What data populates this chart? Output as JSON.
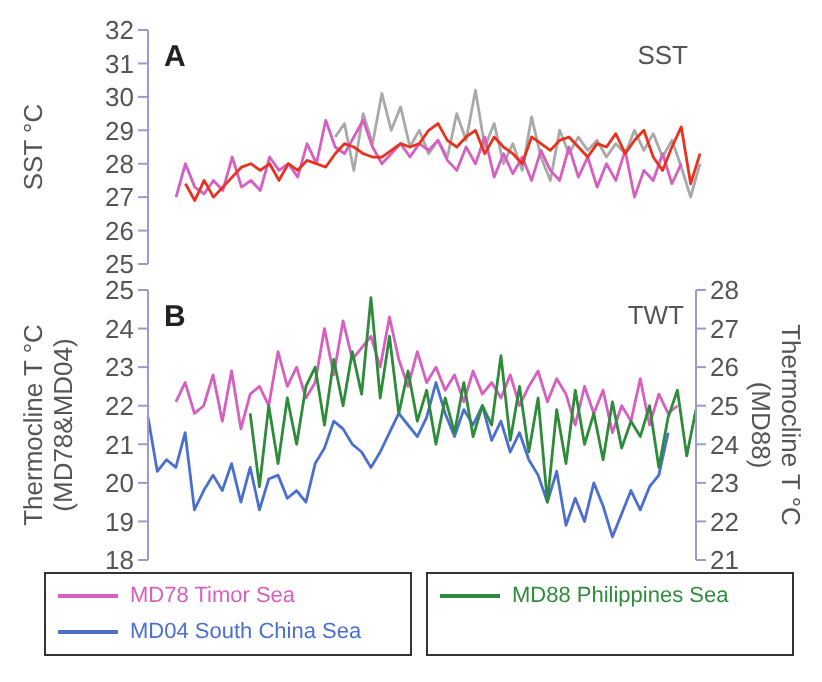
{
  "chart_data": [
    {
      "type": "line",
      "ylabel": "SST °C",
      "annotations": [
        "A",
        "SST"
      ],
      "categories": [
        null,
        null,
        null,
        null,
        null,
        null,
        null,
        null,
        null,
        null,
        null,
        null,
        null,
        null,
        null,
        null,
        null,
        null,
        null,
        null,
        null,
        null,
        null,
        null,
        null,
        null,
        null,
        null,
        null,
        null,
        null,
        null,
        null,
        null,
        null,
        null,
        null,
        null,
        null,
        null,
        null,
        null,
        null,
        null,
        null,
        null,
        null,
        null,
        null,
        null,
        null,
        null,
        null,
        null,
        null,
        null,
        null,
        null,
        null,
        null
      ],
      "ylim": [
        25,
        32
      ],
      "yticks": [
        25,
        26,
        27,
        28,
        29,
        30,
        31,
        32
      ],
      "series": [
        {
          "color": "#a9a9a9",
          "values": [
            null,
            null,
            null,
            null,
            null,
            null,
            null,
            null,
            null,
            null,
            null,
            null,
            null,
            null,
            null,
            null,
            null,
            null,
            null,
            null,
            28.8,
            29.2,
            27.8,
            29.5,
            28.6,
            30.1,
            29,
            29.7,
            28.5,
            29,
            28.3,
            28.7,
            28.2,
            29.5,
            28.7,
            30.2,
            28.5,
            29.2,
            28,
            28.6,
            27.8,
            29.4,
            28.2,
            27.5,
            29,
            28.3,
            28.8,
            28.4,
            28.7,
            28.2,
            28.6,
            28.3,
            29,
            28.4,
            28.9,
            28.2,
            28.7,
            27.9,
            27,
            28
          ]
        },
        {
          "color": "#d65fbf",
          "values": [
            null,
            null,
            null,
            27,
            28,
            27.3,
            27.1,
            27.5,
            27.2,
            28.2,
            27.3,
            27.5,
            27.2,
            28.2,
            27.8,
            28,
            27.6,
            28.6,
            28,
            29.3,
            28.5,
            28.3,
            28.8,
            29.3,
            28.5,
            28,
            28.3,
            28.6,
            28.2,
            28.6,
            28.4,
            28.7,
            28.1,
            27.8,
            28.5,
            28,
            28.8,
            27.6,
            28.3,
            27.7,
            28.2,
            27.5,
            28.4,
            27.8,
            27.5,
            28.5,
            27.6,
            28.2,
            27.3,
            28,
            27.5,
            28.4,
            27,
            27.8,
            27.5,
            28.3,
            27.4,
            28,
            null,
            null
          ]
        },
        {
          "color": "#e8321e",
          "values": [
            null,
            null,
            null,
            null,
            27.4,
            26.9,
            27.5,
            27,
            27.3,
            27.6,
            27.9,
            28,
            27.8,
            28,
            27.5,
            28,
            27.8,
            28.1,
            28,
            27.9,
            28.3,
            28.6,
            28.5,
            28.3,
            28.2,
            28.2,
            28.4,
            28.6,
            28.5,
            28.6,
            29,
            29.2,
            28.7,
            28.5,
            28.8,
            29,
            28.3,
            28.8,
            28.5,
            28.3,
            28,
            28.8,
            28.6,
            28.4,
            28.7,
            28.8,
            28.5,
            28.2,
            28.6,
            28.5,
            28.9,
            28.3,
            28.7,
            29,
            28.2,
            27.8,
            28.5,
            29.1,
            27.4,
            28.3
          ]
        }
      ]
    },
    {
      "type": "line",
      "ylabel": "Thermocline T °C\n(MD78&MD04)",
      "y2label": "Thermocline T °C\n(MD88)",
      "annotations": [
        "B",
        "TWT"
      ],
      "legend": "bottom",
      "categories": [
        null,
        null,
        null,
        null,
        null,
        null,
        null,
        null,
        null,
        null,
        null,
        null,
        null,
        null,
        null,
        null,
        null,
        null,
        null,
        null,
        null,
        null,
        null,
        null,
        null,
        null,
        null,
        null,
        null,
        null,
        null,
        null,
        null,
        null,
        null,
        null,
        null,
        null,
        null,
        null,
        null,
        null,
        null,
        null,
        null,
        null,
        null,
        null,
        null,
        null,
        null,
        null,
        null,
        null,
        null,
        null,
        null,
        null,
        null,
        null
      ],
      "ylim": [
        18,
        25
      ],
      "yticks": [
        18,
        19,
        20,
        21,
        22,
        23,
        24,
        25
      ],
      "y2lim": [
        21,
        28
      ],
      "y2ticks": [
        21,
        22,
        23,
        24,
        25,
        26,
        27,
        28
      ],
      "series": [
        {
          "name": "MD78 Timor Sea",
          "color": "#d65fbf",
          "values": [
            null,
            null,
            null,
            22.1,
            22.6,
            21.8,
            22,
            22.8,
            21.6,
            22.9,
            21.4,
            22.3,
            22.5,
            22,
            23.4,
            22.5,
            23,
            22.2,
            22.6,
            24,
            22.8,
            24.2,
            23.2,
            23.5,
            23.8,
            23,
            24.3,
            23.2,
            22.5,
            23.4,
            22.6,
            23,
            22.4,
            22.8,
            22.1,
            22.9,
            22.3,
            22.6,
            22.2,
            22.8,
            22,
            22.5,
            22.9,
            22.1,
            22.7,
            22.3,
            21.5,
            22.5,
            21.8,
            22.4,
            21.3,
            22,
            21.6,
            22.7,
            21.5,
            22.3,
            21.8,
            22,
            null,
            null
          ]
        },
        {
          "name": "MD04 South China Sea",
          "color": "#4a6fcf",
          "values": [
            21.7,
            20.3,
            20.6,
            20.4,
            21.3,
            19.3,
            19.8,
            20.2,
            19.8,
            20.5,
            19.5,
            20.4,
            19.3,
            20.1,
            20.2,
            19.6,
            19.8,
            19.5,
            20.5,
            20.9,
            21.6,
            21.4,
            21,
            20.8,
            20.4,
            20.8,
            21.3,
            21.8,
            21.5,
            21.2,
            21.7,
            22.6,
            21.8,
            21.2,
            21.9,
            21.5,
            22,
            21.1,
            21.6,
            20.8,
            21.3,
            20.6,
            20.2,
            19.5,
            20.3,
            18.9,
            19.6,
            19,
            20,
            19.4,
            18.6,
            19.2,
            19.8,
            19.3,
            19.9,
            20.2,
            21.3,
            null,
            null,
            null
          ]
        },
        {
          "name": "MD88 Philippines Sea",
          "color": "#2e8b3a",
          "axis": "y2",
          "values": [
            null,
            null,
            null,
            null,
            null,
            null,
            null,
            null,
            null,
            null,
            null,
            24.8,
            22.9,
            25,
            23.5,
            25.2,
            24,
            25.5,
            26,
            24.5,
            26.2,
            25,
            26.4,
            25.3,
            27.8,
            25.2,
            26.8,
            24.8,
            25.9,
            24.6,
            25.4,
            24,
            25.2,
            24.3,
            25.6,
            24.2,
            25,
            24.5,
            26.3,
            24.1,
            25.5,
            23.8,
            25.2,
            22.5,
            24.9,
            23.5,
            25.4,
            24,
            24.8,
            23.6,
            25.1,
            23.9,
            24.6,
            24.2,
            25,
            23.4,
            24.7,
            25.4,
            23.7,
            24.9
          ]
        }
      ]
    }
  ]
}
